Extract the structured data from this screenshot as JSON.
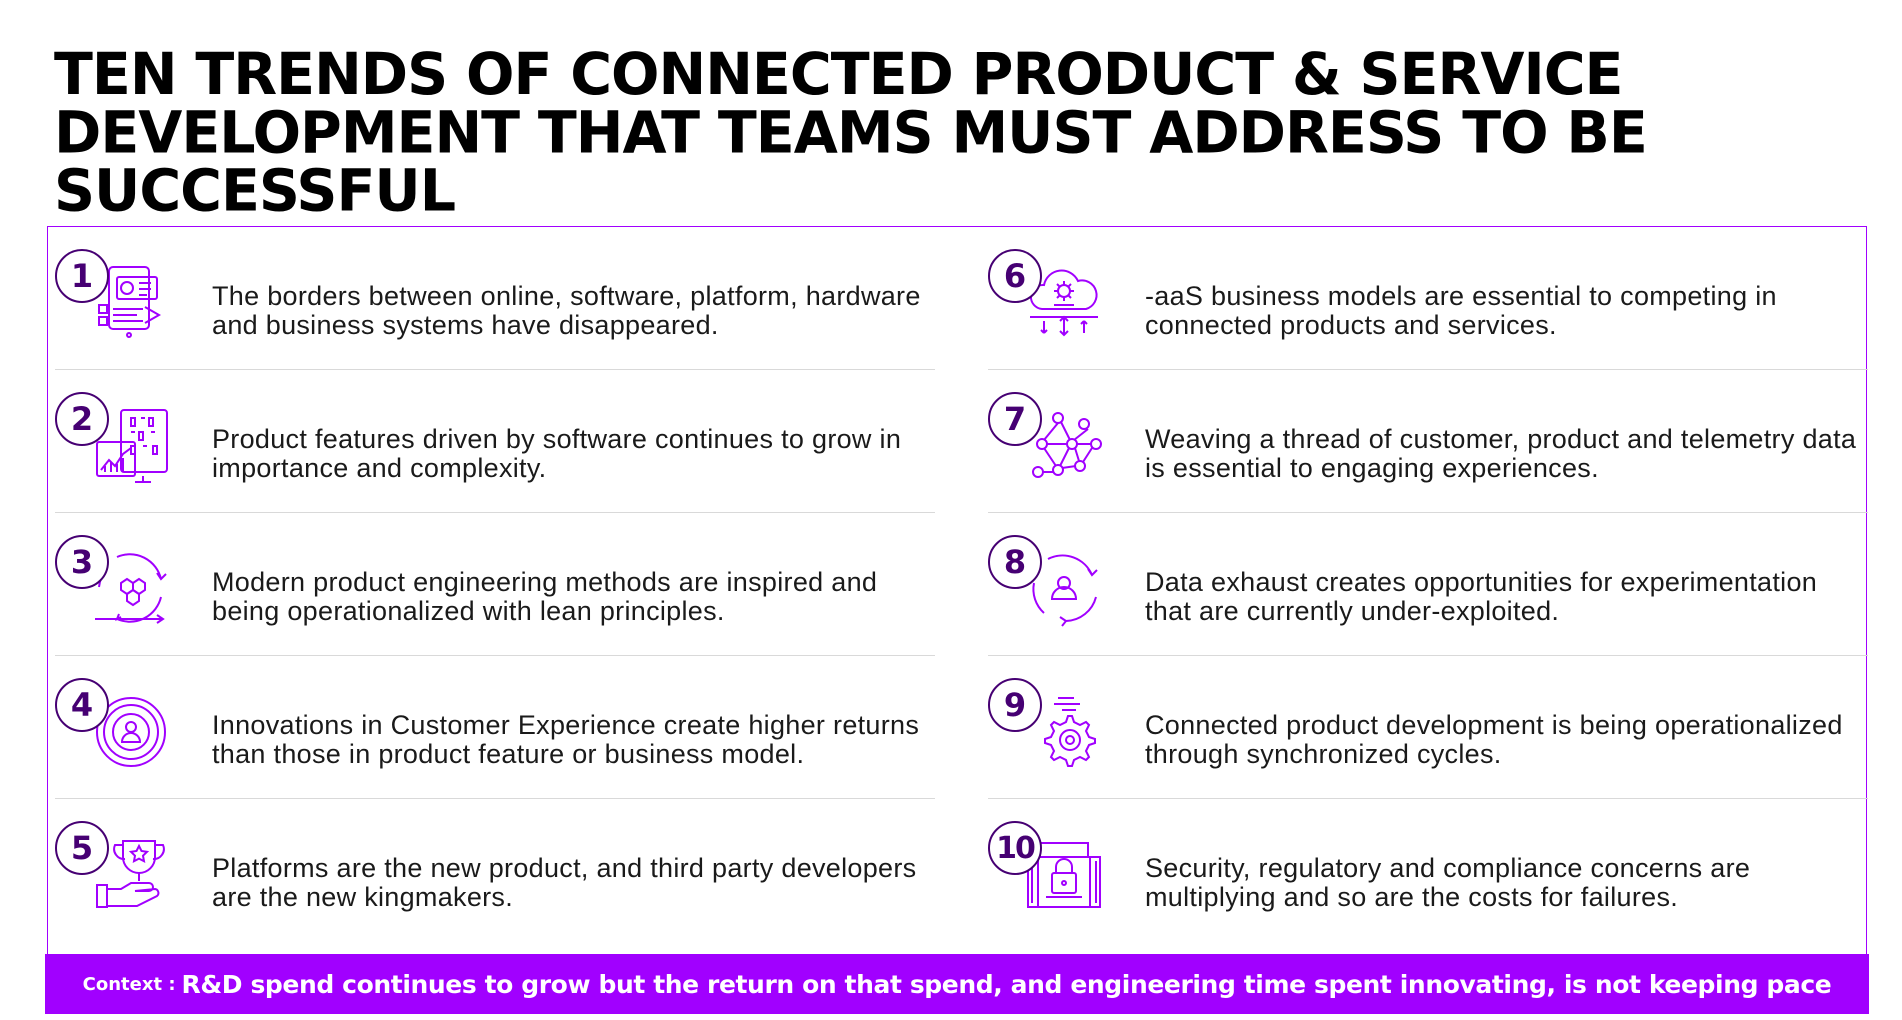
{
  "title": {
    "lines": [
      "TEN TRENDS OF CONNECTED PRODUCT & SERVICE",
      "DEVELOPMENT THAT TEAMS MUST ADDRESS TO BE",
      "SUCCESSFUL"
    ]
  },
  "colors": {
    "accent": "#a100ff",
    "number_circle": "#460073",
    "divider": "#d9d9d9"
  },
  "trends": [
    {
      "number": "1",
      "icon": "systems-dashboard-icon",
      "text": "The borders between online, software, platform, hardware and business systems have disappeared."
    },
    {
      "number": "2",
      "icon": "software-analytics-icon",
      "text": "Product features driven by software continues to grow in importance and complexity."
    },
    {
      "number": "3",
      "icon": "hexagon-cycle-icon",
      "text": "Modern product engineering methods are inspired and being operationalized with lean principles."
    },
    {
      "number": "4",
      "icon": "customer-target-icon",
      "text": "Innovations in Customer Experience create higher returns than those in product feature or business model."
    },
    {
      "number": "5",
      "icon": "trophy-hand-icon",
      "text": "Platforms are the new product, and third party developers are the new kingmakers."
    },
    {
      "number": "6",
      "icon": "cloud-gear-icon",
      "text": "-aaS business models are essential to competing in connected products and services."
    },
    {
      "number": "7",
      "icon": "network-nodes-icon",
      "text": "Weaving a thread of customer, product and telemetry data is essential to engaging experiences."
    },
    {
      "number": "8",
      "icon": "user-cycle-icon",
      "text": "Data exhaust creates opportunities for experimentation that are currently under-exploited."
    },
    {
      "number": "9",
      "icon": "speed-gear-icon",
      "text": "Connected product development is being operationalized through synchronized cycles."
    },
    {
      "number": "10",
      "icon": "security-lock-icon",
      "text": "Security, regulatory and compliance concerns are multiplying and so are the costs for failures."
    }
  ],
  "context": {
    "label": "Context :",
    "message": "R&D spend continues to grow but the return on that spend, and engineering time spent innovating, is not keeping pace"
  }
}
